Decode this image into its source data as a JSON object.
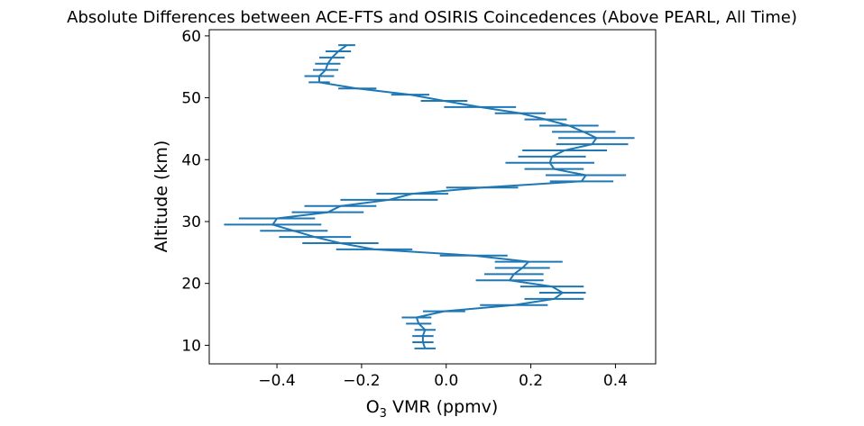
{
  "chart_data": {
    "type": "line",
    "title": "Absolute Differences between ACE-FTS and OSIRIS Coincedences (Above PEARL, All Time)",
    "xlabel_main": "O",
    "xlabel_sub": "3",
    "xlabel_rest": " VMR (ppmv)",
    "ylabel": "Altitude (km)",
    "xlim": [
      -0.56,
      0.495
    ],
    "ylim": [
      7,
      61
    ],
    "xticks": [
      -0.4,
      -0.2,
      0.0,
      0.2,
      0.4
    ],
    "xtick_labels": [
      "−0.4",
      "−0.2",
      "0.0",
      "0.2",
      "0.4"
    ],
    "yticks": [
      10,
      20,
      30,
      40,
      50,
      60
    ],
    "ytick_labels": [
      "10",
      "20",
      "30",
      "40",
      "50",
      "60"
    ],
    "grid": false,
    "color": "#1f77b4",
    "series": [
      {
        "points": [
          {
            "y": 9.5,
            "x": -0.05,
            "xerr": 0.025
          },
          {
            "y": 10.5,
            "x": -0.055,
            "xerr": 0.025
          },
          {
            "y": 11.5,
            "x": -0.055,
            "xerr": 0.025
          },
          {
            "y": 12.5,
            "x": -0.05,
            "xerr": 0.025
          },
          {
            "y": 13.5,
            "x": -0.065,
            "xerr": 0.03
          },
          {
            "y": 14.5,
            "x": -0.07,
            "xerr": 0.035
          },
          {
            "y": 15.5,
            "x": -0.005,
            "xerr": 0.05
          },
          {
            "y": 16.5,
            "x": 0.16,
            "xerr": 0.08
          },
          {
            "y": 17.5,
            "x": 0.255,
            "xerr": 0.07
          },
          {
            "y": 18.5,
            "x": 0.275,
            "xerr": 0.055
          },
          {
            "y": 19.5,
            "x": 0.25,
            "xerr": 0.075
          },
          {
            "y": 20.5,
            "x": 0.15,
            "xerr": 0.08
          },
          {
            "y": 21.5,
            "x": 0.16,
            "xerr": 0.07
          },
          {
            "y": 22.5,
            "x": 0.18,
            "xerr": 0.065
          },
          {
            "y": 23.5,
            "x": 0.195,
            "xerr": 0.08
          },
          {
            "y": 24.5,
            "x": 0.065,
            "xerr": 0.08
          },
          {
            "y": 25.5,
            "x": -0.17,
            "xerr": 0.09
          },
          {
            "y": 26.5,
            "x": -0.25,
            "xerr": 0.09
          },
          {
            "y": 27.5,
            "x": -0.31,
            "xerr": 0.085
          },
          {
            "y": 28.5,
            "x": -0.36,
            "xerr": 0.08
          },
          {
            "y": 29.5,
            "x": -0.41,
            "xerr": 0.115
          },
          {
            "y": 30.5,
            "x": -0.4,
            "xerr": 0.09
          },
          {
            "y": 31.5,
            "x": -0.28,
            "xerr": 0.085
          },
          {
            "y": 32.5,
            "x": -0.25,
            "xerr": 0.085
          },
          {
            "y": 33.5,
            "x": -0.135,
            "xerr": 0.115
          },
          {
            "y": 34.5,
            "x": -0.08,
            "xerr": 0.085
          },
          {
            "y": 35.5,
            "x": 0.085,
            "xerr": 0.085
          },
          {
            "y": 36.5,
            "x": 0.32,
            "xerr": 0.075
          },
          {
            "y": 37.5,
            "x": 0.33,
            "xerr": 0.095
          },
          {
            "y": 38.5,
            "x": 0.255,
            "xerr": 0.07
          },
          {
            "y": 39.5,
            "x": 0.245,
            "xerr": 0.105
          },
          {
            "y": 40.5,
            "x": 0.25,
            "xerr": 0.08
          },
          {
            "y": 41.5,
            "x": 0.28,
            "xerr": 0.1
          },
          {
            "y": 42.5,
            "x": 0.345,
            "xerr": 0.085
          },
          {
            "y": 43.5,
            "x": 0.355,
            "xerr": 0.09
          },
          {
            "y": 44.5,
            "x": 0.325,
            "xerr": 0.075
          },
          {
            "y": 45.5,
            "x": 0.29,
            "xerr": 0.07
          },
          {
            "y": 46.5,
            "x": 0.235,
            "xerr": 0.05
          },
          {
            "y": 47.5,
            "x": 0.175,
            "xerr": 0.06
          },
          {
            "y": 48.5,
            "x": 0.08,
            "xerr": 0.085
          },
          {
            "y": 49.5,
            "x": -0.005,
            "xerr": 0.055
          },
          {
            "y": 50.5,
            "x": -0.085,
            "xerr": 0.045
          },
          {
            "y": 51.5,
            "x": -0.21,
            "xerr": 0.045
          },
          {
            "y": 52.5,
            "x": -0.3,
            "xerr": 0.025
          },
          {
            "y": 53.5,
            "x": -0.3,
            "xerr": 0.035
          },
          {
            "y": 54.5,
            "x": -0.285,
            "xerr": 0.03
          },
          {
            "y": 55.5,
            "x": -0.28,
            "xerr": 0.03
          },
          {
            "y": 56.5,
            "x": -0.27,
            "xerr": 0.03
          },
          {
            "y": 57.5,
            "x": -0.255,
            "xerr": 0.03
          },
          {
            "y": 58.5,
            "x": -0.235,
            "xerr": 0.02
          }
        ]
      }
    ]
  }
}
